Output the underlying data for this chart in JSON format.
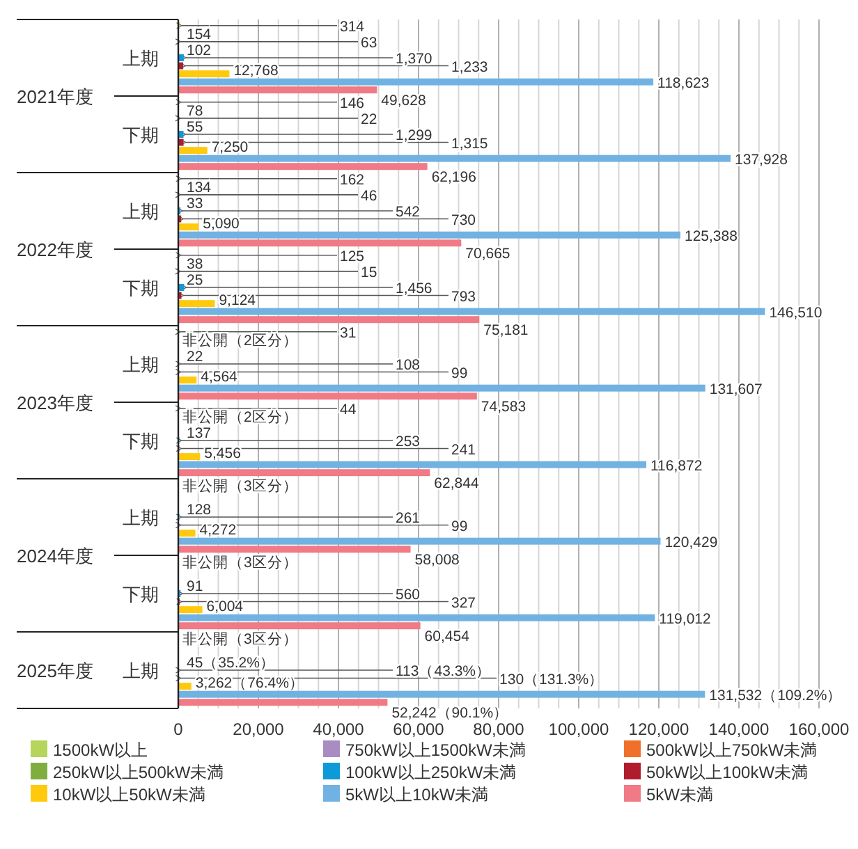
{
  "chart_data": {
    "type": "bar",
    "orientation": "horizontal",
    "categories": [
      "上期",
      "下期",
      "上期",
      "下期",
      "上期",
      "下期",
      "上期",
      "下期",
      "上期"
    ],
    "annotations": [
      "2021年度",
      "2022年度",
      "2023年度",
      "2024年度",
      "2025年度"
    ],
    "series": [
      {
        "name": "1500kW以上",
        "color": "#b5d55b",
        "values": [
          314,
          146,
          162,
          125,
          31,
          44,
          null,
          null,
          null
        ],
        "value_labels": [
          "314",
          "146",
          "162",
          "125",
          "31",
          "44",
          "非公開（3区分）",
          "非公開（3区分）",
          "非公開（3区分）"
        ]
      },
      {
        "name": "750kW以上1500kW未満",
        "color": "#a98cc2",
        "values": [
          154,
          78,
          134,
          38,
          null,
          null,
          null,
          null,
          null
        ],
        "value_labels": [
          "154",
          "78",
          "134",
          "38",
          "非公開（2区分）",
          "非公開（2区分）",
          null,
          null,
          null
        ]
      },
      {
        "name": "500kW以上750kW未満",
        "color": "#f0702a",
        "values": [
          63,
          22,
          46,
          15,
          null,
          null,
          null,
          null,
          null
        ],
        "value_labels": [
          "63",
          "22",
          "46",
          "15",
          null,
          null,
          null,
          null,
          null
        ]
      },
      {
        "name": "250kW以上500kW未満",
        "color": "#7fae3e",
        "values": [
          102,
          55,
          33,
          25,
          22,
          137,
          128,
          91,
          45
        ],
        "value_labels": [
          "102",
          "55",
          "33",
          "25",
          "22",
          "137",
          "128",
          "91",
          "45（35.2%）"
        ]
      },
      {
        "name": "100kW以上250kW未満",
        "color": "#0e9ad8",
        "values": [
          1370,
          1299,
          542,
          1456,
          108,
          253,
          261,
          560,
          113
        ],
        "value_labels": [
          "1,370",
          "1,299",
          "542",
          "1,456",
          "108",
          "253",
          "261",
          "560",
          "113（43.3%）"
        ]
      },
      {
        "name": "50kW以上100kW未満",
        "color": "#b01c2e",
        "values": [
          1233,
          1315,
          730,
          793,
          99,
          241,
          99,
          327,
          130
        ],
        "value_labels": [
          "1,233",
          "1,315",
          "730",
          "793",
          "99",
          "241",
          "99",
          "327",
          "130（131.3%）"
        ]
      },
      {
        "name": "10kW以上50kW未満",
        "color": "#ffc90e",
        "values": [
          12768,
          7250,
          5090,
          9124,
          4564,
          5456,
          4272,
          6004,
          3262
        ],
        "value_labels": [
          "12,768",
          "7,250",
          "5,090",
          "9,124",
          "4,564",
          "5,456",
          "4,272",
          "6,004",
          "3,262（76.4%）"
        ]
      },
      {
        "name": "5kW以上10kW未満",
        "color": "#72b2e2",
        "values": [
          118623,
          137928,
          125388,
          146510,
          131607,
          116872,
          120429,
          119012,
          131532
        ],
        "value_labels": [
          "118,623",
          "137,928",
          "125,388",
          "146,510",
          "131,607",
          "116,872",
          "120,429",
          "119,012",
          "131,532（109.2%）"
        ]
      },
      {
        "name": "5kW未満",
        "color": "#f07a85",
        "values": [
          49628,
          62196,
          70665,
          75181,
          74583,
          62844,
          58008,
          60454,
          52242
        ],
        "value_labels": [
          "49,628",
          "62,196",
          "70,665",
          "75,181",
          "74,583",
          "62,844",
          "58,008",
          "60,454",
          "52,242（90.1%）"
        ]
      }
    ],
    "xlim": [
      0,
      160000
    ],
    "xticks": [
      0,
      {
        "value": 5000,
        "label": null
      },
      {
        "value": 10000,
        "label": null
      },
      {
        "value": 15000,
        "label": null
      },
      {
        "value": 20000,
        "label": "20,000"
      },
      {
        "value": 25000,
        "label": null
      },
      {
        "value": 30000,
        "label": null
      },
      {
        "value": 35000,
        "label": null
      },
      {
        "value": 40000,
        "label": "40,000"
      },
      {
        "value": 45000,
        "label": null
      },
      {
        "value": 50000,
        "label": null
      },
      {
        "value": 55000,
        "label": null
      },
      {
        "value": 60000,
        "label": "60,000"
      },
      {
        "value": 65000,
        "label": null
      },
      {
        "value": 70000,
        "label": null
      },
      {
        "value": 75000,
        "label": null
      },
      {
        "value": 80000,
        "label": "80,000"
      },
      {
        "value": 85000,
        "label": null
      },
      {
        "value": 90000,
        "label": null
      },
      {
        "value": 95000,
        "label": null
      },
      {
        "value": 100000,
        "label": "100,000"
      },
      {
        "value": 105000,
        "label": null
      },
      {
        "value": 110000,
        "label": null
      },
      {
        "value": 115000,
        "label": null
      },
      {
        "value": 120000,
        "label": "120,000"
      },
      {
        "value": 125000,
        "label": null
      },
      {
        "value": 130000,
        "label": null
      },
      {
        "value": 135000,
        "label": null
      },
      {
        "value": 140000,
        "label": "140,000"
      },
      {
        "value": 145000,
        "label": null
      },
      {
        "value": 150000,
        "label": null
      },
      {
        "value": 155000,
        "label": null
      },
      {
        "value": 160000,
        "label": "160,000"
      }
    ],
    "grid": "x",
    "legend": "bottom"
  }
}
